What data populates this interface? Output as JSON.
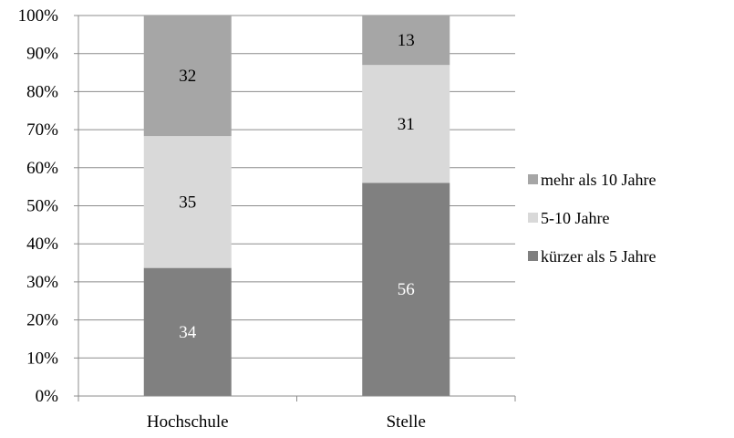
{
  "chart_data": {
    "type": "bar",
    "stacked": true,
    "percent_stacked": true,
    "categories": [
      "Hochschule",
      "Stelle"
    ],
    "series": [
      {
        "name": "kürzer als 5 Jahre",
        "values": [
          34,
          56
        ],
        "color": "#808080",
        "label_color": "#ffffff"
      },
      {
        "name": "5-10 Jahre",
        "values": [
          35,
          31
        ],
        "color": "#d9d9d9",
        "label_color": "#000000"
      },
      {
        "name": "mehr als 10 Jahre",
        "values": [
          32,
          13
        ],
        "color": "#a6a6a6",
        "label_color": "#000000"
      }
    ],
    "data_labels": true,
    "ylim": [
      0,
      100
    ],
    "yticks": [
      "0%",
      "10%",
      "20%",
      "30%",
      "40%",
      "50%",
      "60%",
      "70%",
      "80%",
      "90%",
      "100%"
    ],
    "grid": true,
    "legend_position": "right",
    "legend_order": [
      "mehr als 10 Jahre",
      "5-10 Jahre",
      "kürzer als 5 Jahre"
    ],
    "title": "",
    "xlabel": "",
    "ylabel": ""
  }
}
